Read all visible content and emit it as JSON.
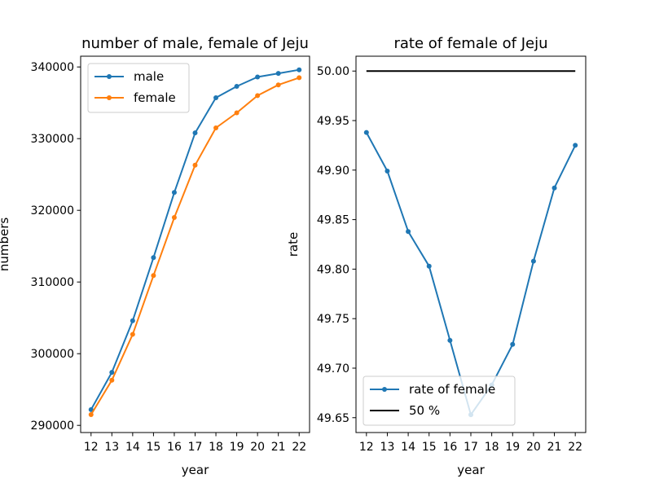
{
  "chart_data": [
    {
      "type": "line",
      "title": "number of male, female of Jeju",
      "xlabel": "year",
      "ylabel": "numbers",
      "x": [
        12,
        13,
        14,
        15,
        16,
        17,
        18,
        19,
        20,
        21,
        22
      ],
      "xlim": [
        11.5,
        22.5
      ],
      "ylim": [
        289000,
        341500
      ],
      "yticks": [
        290000,
        300000,
        310000,
        320000,
        330000,
        340000
      ],
      "legend": "upper left",
      "grid": false,
      "series": [
        {
          "name": "male",
          "color": "#1f77b4",
          "marker": "dot",
          "values": [
            292200,
            297400,
            304600,
            313400,
            322500,
            330800,
            335700,
            337300,
            338600,
            339100,
            339600
          ]
        },
        {
          "name": "female",
          "color": "#ff7f0e",
          "marker": "dot",
          "values": [
            291500,
            296300,
            302700,
            310900,
            319000,
            326300,
            331500,
            333600,
            336000,
            337500,
            338500
          ]
        }
      ]
    },
    {
      "type": "line",
      "title": "rate of female of Jeju",
      "xlabel": "year",
      "ylabel": "rate",
      "x": [
        12,
        13,
        14,
        15,
        16,
        17,
        18,
        19,
        20,
        21,
        22
      ],
      "xlim": [
        11.5,
        22.5
      ],
      "ylim": [
        49.635,
        50.015
      ],
      "yticks": [
        49.65,
        49.7,
        49.75,
        49.8,
        49.85,
        49.9,
        49.95,
        50.0
      ],
      "ytick_labels": [
        "49.65",
        "49.70",
        "49.75",
        "49.80",
        "49.85",
        "49.90",
        "49.95",
        "50.00"
      ],
      "legend": "lower left",
      "grid": false,
      "series": [
        {
          "name": "rate of female",
          "color": "#1f77b4",
          "marker": "dot",
          "values": [
            49.938,
            49.899,
            49.838,
            49.803,
            49.728,
            49.653,
            49.683,
            49.724,
            49.808,
            49.882,
            49.925
          ]
        },
        {
          "name": "50 %",
          "color": "#000000",
          "marker": "none",
          "values": [
            50.0,
            50.0,
            50.0,
            50.0,
            50.0,
            50.0,
            50.0,
            50.0,
            50.0,
            50.0,
            50.0
          ]
        }
      ]
    }
  ]
}
